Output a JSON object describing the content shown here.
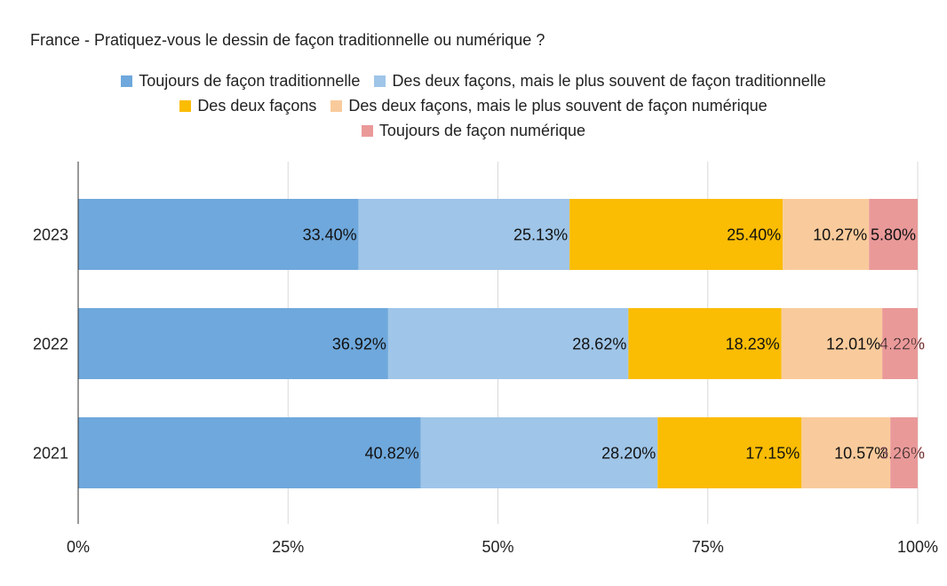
{
  "chart_data": {
    "type": "bar",
    "orientation": "horizontal",
    "stacked": true,
    "title": "France - Pratiquez-vous le dessin de façon traditionnelle ou numérique ?",
    "categories": [
      "2023",
      "2022",
      "2021"
    ],
    "series": [
      {
        "name": "Toujours de façon traditionnelle",
        "color": "#6fa8dc",
        "values": [
          33.4,
          36.92,
          40.82
        ],
        "labels": [
          "33.40%",
          "36.92%",
          "40.82%"
        ]
      },
      {
        "name": "Des deux façons, mais le plus souvent de façon traditionnelle",
        "color": "#9fc5e8",
        "values": [
          25.13,
          28.62,
          28.2
        ],
        "labels": [
          "25.13%",
          "28.62%",
          "28.20%"
        ]
      },
      {
        "name": "Des deux façons",
        "color": "#fbbc04",
        "values": [
          25.4,
          18.23,
          17.15
        ],
        "labels": [
          "25.40%",
          "18.23%",
          "17.15%"
        ]
      },
      {
        "name": "Des deux façons, mais le plus souvent de façon numérique",
        "color": "#f9cb9c",
        "values": [
          10.27,
          12.01,
          10.57
        ],
        "labels": [
          "10.27%",
          "12.01%",
          "10.57%"
        ]
      },
      {
        "name": "Toujours de façon numérique",
        "color": "#ea9999",
        "values": [
          5.8,
          4.22,
          3.26
        ],
        "labels": [
          "5.80%",
          "4.22%",
          "3.26%"
        ]
      }
    ],
    "xlim": [
      0,
      100
    ],
    "xticks": [
      0,
      25,
      50,
      75,
      100
    ],
    "xtick_labels": [
      "0%",
      "25%",
      "50%",
      "75%",
      "100%"
    ],
    "grid": true,
    "legend": "top"
  }
}
